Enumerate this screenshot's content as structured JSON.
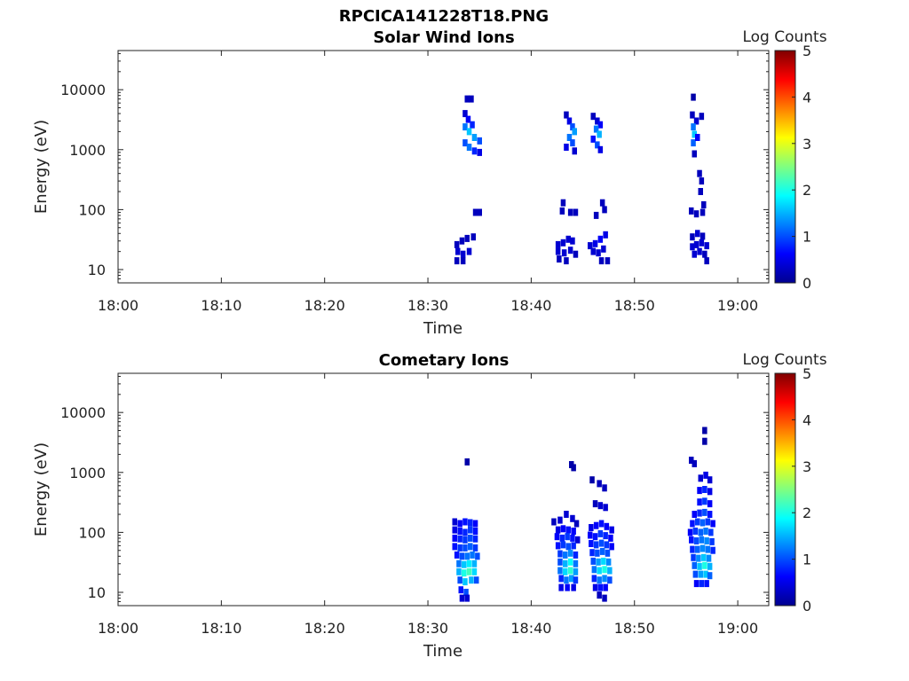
{
  "figure_title": "RPCICA141228T18.PNG",
  "chart_data": [
    {
      "type": "heatmap",
      "title": "Solar Wind Ions",
      "xlabel": "Time",
      "ylabel": "Energy (eV)",
      "x_ticks": [
        "18:00",
        "18:10",
        "18:20",
        "18:30",
        "18:40",
        "18:50",
        "19:00"
      ],
      "x_range_minutes": [
        0,
        63
      ],
      "y_scale": "log",
      "y_ticks": [
        "10",
        "100",
        "1000",
        "10000"
      ],
      "y_range": [
        6,
        45000
      ],
      "colorbar": {
        "label": "Log Counts",
        "ticks": [
          "0",
          "1",
          "2",
          "3",
          "4",
          "5"
        ],
        "range": [
          0,
          5
        ],
        "colormap": "jet"
      },
      "cells": [
        [
          33.8,
          7000,
          0.3
        ],
        [
          34.2,
          7000,
          0.3
        ],
        [
          33.6,
          4000,
          0.4
        ],
        [
          33.9,
          3200,
          0.6
        ],
        [
          34.3,
          2600,
          0.8
        ],
        [
          33.6,
          2400,
          1.2
        ],
        [
          34.0,
          2000,
          1.6
        ],
        [
          34.5,
          1600,
          1.4
        ],
        [
          35.0,
          1400,
          1.0
        ],
        [
          33.6,
          1300,
          1.0
        ],
        [
          34.0,
          1100,
          1.2
        ],
        [
          34.5,
          950,
          0.8
        ],
        [
          35.0,
          900,
          0.5
        ],
        [
          34.6,
          90,
          0.3
        ],
        [
          35.0,
          90,
          0.3
        ],
        [
          32.8,
          26,
          0.3
        ],
        [
          33.3,
          30,
          0.3
        ],
        [
          33.8,
          33,
          0.3
        ],
        [
          34.4,
          35,
          0.3
        ],
        [
          32.9,
          20,
          0.4
        ],
        [
          33.4,
          18,
          0.4
        ],
        [
          34.0,
          20,
          0.4
        ],
        [
          32.8,
          14,
          0.3
        ],
        [
          33.4,
          14,
          0.3
        ],
        [
          43.4,
          3800,
          0.3
        ],
        [
          43.7,
          3000,
          0.5
        ],
        [
          44.0,
          2400,
          1.0
        ],
        [
          44.2,
          2000,
          1.4
        ],
        [
          43.7,
          1600,
          1.2
        ],
        [
          44.0,
          1300,
          1.0
        ],
        [
          43.4,
          1100,
          0.5
        ],
        [
          44.2,
          950,
          0.4
        ],
        [
          46.0,
          3600,
          0.3
        ],
        [
          46.4,
          3000,
          0.4
        ],
        [
          46.7,
          2600,
          0.6
        ],
        [
          46.3,
          2200,
          1.2
        ],
        [
          46.6,
          1800,
          1.5
        ],
        [
          46.0,
          1500,
          0.7
        ],
        [
          46.4,
          1200,
          1.0
        ],
        [
          46.7,
          1000,
          0.5
        ],
        [
          43.1,
          130,
          0.3
        ],
        [
          43.0,
          95,
          0.3
        ],
        [
          43.8,
          90,
          0.3
        ],
        [
          44.3,
          90,
          0.3
        ],
        [
          46.3,
          80,
          0.3
        ],
        [
          46.9,
          130,
          0.3
        ],
        [
          47.1,
          100,
          0.3
        ],
        [
          42.6,
          26,
          0.4
        ],
        [
          43.1,
          28,
          0.4
        ],
        [
          43.6,
          32,
          0.4
        ],
        [
          44.0,
          30,
          0.4
        ],
        [
          42.6,
          20,
          0.4
        ],
        [
          43.2,
          19,
          0.4
        ],
        [
          43.8,
          21,
          0.4
        ],
        [
          44.3,
          18,
          0.3
        ],
        [
          42.7,
          15,
          0.3
        ],
        [
          43.4,
          14,
          0.3
        ],
        [
          45.7,
          25,
          0.4
        ],
        [
          46.2,
          27,
          0.5
        ],
        [
          46.7,
          32,
          0.6
        ],
        [
          47.2,
          38,
          0.5
        ],
        [
          46.0,
          20,
          0.4
        ],
        [
          46.5,
          19,
          0.4
        ],
        [
          47.0,
          22,
          0.4
        ],
        [
          46.8,
          14,
          0.3
        ],
        [
          47.4,
          14,
          0.3
        ],
        [
          55.7,
          7500,
          0.2
        ],
        [
          55.6,
          3800,
          0.3
        ],
        [
          56.0,
          3000,
          0.4
        ],
        [
          56.5,
          3600,
          0.3
        ],
        [
          55.7,
          2400,
          1.2
        ],
        [
          55.8,
          1800,
          1.6
        ],
        [
          55.7,
          1300,
          1.1
        ],
        [
          56.1,
          1600,
          0.6
        ],
        [
          55.8,
          850,
          0.3
        ],
        [
          56.3,
          400,
          0.3
        ],
        [
          56.5,
          300,
          0.3
        ],
        [
          56.4,
          200,
          0.3
        ],
        [
          56.7,
          120,
          0.3
        ],
        [
          55.5,
          95,
          0.3
        ],
        [
          56.0,
          85,
          0.3
        ],
        [
          56.6,
          90,
          0.3
        ],
        [
          55.6,
          35,
          0.3
        ],
        [
          56.1,
          40,
          0.4
        ],
        [
          56.6,
          36,
          0.3
        ],
        [
          55.6,
          24,
          0.4
        ],
        [
          56.0,
          26,
          0.4
        ],
        [
          56.5,
          28,
          0.4
        ],
        [
          57.0,
          25,
          0.4
        ],
        [
          55.8,
          18,
          0.4
        ],
        [
          56.3,
          20,
          0.4
        ],
        [
          56.8,
          18,
          0.3
        ],
        [
          57.0,
          14,
          0.3
        ]
      ]
    },
    {
      "type": "heatmap",
      "title": "Cometary Ions",
      "xlabel": "Time",
      "ylabel": "Energy (eV)",
      "x_ticks": [
        "18:00",
        "18:10",
        "18:20",
        "18:30",
        "18:40",
        "18:50",
        "19:00"
      ],
      "x_range_minutes": [
        0,
        63
      ],
      "y_scale": "log",
      "y_ticks": [
        "10",
        "100",
        "1000",
        "10000"
      ],
      "y_range": [
        6,
        45000
      ],
      "colorbar": {
        "label": "Log Counts",
        "ticks": [
          "0",
          "1",
          "2",
          "3",
          "4",
          "5"
        ],
        "range": [
          0,
          5
        ],
        "colormap": "jet"
      },
      "cells": [
        [
          33.8,
          1500,
          0.2
        ],
        [
          32.6,
          150,
          0.4
        ],
        [
          33.1,
          140,
          0.6
        ],
        [
          33.6,
          150,
          0.7
        ],
        [
          34.1,
          145,
          0.8
        ],
        [
          34.6,
          140,
          0.6
        ],
        [
          32.6,
          110,
          0.5
        ],
        [
          33.1,
          105,
          0.7
        ],
        [
          33.6,
          100,
          0.8
        ],
        [
          34.1,
          110,
          0.9
        ],
        [
          34.6,
          105,
          0.7
        ],
        [
          32.6,
          80,
          0.6
        ],
        [
          33.1,
          78,
          0.8
        ],
        [
          33.6,
          75,
          0.9
        ],
        [
          34.1,
          80,
          1.0
        ],
        [
          34.6,
          78,
          0.8
        ],
        [
          32.6,
          58,
          0.7
        ],
        [
          33.1,
          55,
          0.9
        ],
        [
          33.6,
          55,
          1.0
        ],
        [
          34.1,
          58,
          1.1
        ],
        [
          34.6,
          55,
          0.9
        ],
        [
          32.8,
          42,
          0.7
        ],
        [
          33.3,
          40,
          1.0
        ],
        [
          33.8,
          40,
          1.2
        ],
        [
          34.3,
          42,
          1.2
        ],
        [
          34.8,
          40,
          1.0
        ],
        [
          33.0,
          30,
          1.2
        ],
        [
          33.5,
          29,
          1.6
        ],
        [
          34.0,
          30,
          1.8
        ],
        [
          34.5,
          30,
          1.5
        ],
        [
          33.0,
          22,
          1.5
        ],
        [
          33.5,
          21,
          2.0
        ],
        [
          34.0,
          22,
          2.2
        ],
        [
          34.5,
          22,
          1.7
        ],
        [
          33.1,
          16,
          1.0
        ],
        [
          33.6,
          15,
          1.6
        ],
        [
          34.2,
          16,
          1.5
        ],
        [
          34.7,
          16,
          1.0
        ],
        [
          33.2,
          11,
          0.7
        ],
        [
          33.7,
          10,
          1.0
        ],
        [
          33.3,
          8,
          0.4
        ],
        [
          33.8,
          8,
          0.4
        ],
        [
          43.9,
          1350,
          0.2
        ],
        [
          44.1,
          1200,
          0.2
        ],
        [
          42.2,
          150,
          0.3
        ],
        [
          42.8,
          160,
          0.4
        ],
        [
          43.4,
          200,
          0.4
        ],
        [
          44.0,
          170,
          0.4
        ],
        [
          44.4,
          140,
          0.3
        ],
        [
          42.6,
          110,
          0.5
        ],
        [
          43.1,
          115,
          0.6
        ],
        [
          43.6,
          110,
          0.7
        ],
        [
          44.1,
          105,
          0.6
        ],
        [
          42.5,
          85,
          0.6
        ],
        [
          43.0,
          80,
          0.8
        ],
        [
          43.5,
          85,
          0.9
        ],
        [
          44.0,
          80,
          0.7
        ],
        [
          44.5,
          75,
          0.4
        ],
        [
          42.6,
          60,
          0.7
        ],
        [
          43.1,
          62,
          0.9
        ],
        [
          43.6,
          58,
          1.0
        ],
        [
          44.1,
          60,
          0.8
        ],
        [
          42.8,
          44,
          0.9
        ],
        [
          43.3,
          42,
          1.2
        ],
        [
          43.8,
          45,
          1.3
        ],
        [
          44.3,
          42,
          0.8
        ],
        [
          42.8,
          32,
          1.0
        ],
        [
          43.3,
          30,
          1.5
        ],
        [
          43.8,
          32,
          1.9
        ],
        [
          44.3,
          30,
          1.2
        ],
        [
          42.8,
          23,
          1.2
        ],
        [
          43.3,
          22,
          1.7
        ],
        [
          43.8,
          23,
          2.1
        ],
        [
          44.3,
          22,
          1.4
        ],
        [
          42.9,
          17,
          0.8
        ],
        [
          43.4,
          16,
          1.2
        ],
        [
          43.9,
          17,
          1.4
        ],
        [
          44.3,
          16,
          0.9
        ],
        [
          42.9,
          12,
          0.5
        ],
        [
          43.5,
          12,
          0.6
        ],
        [
          44.1,
          12,
          0.5
        ],
        [
          45.9,
          750,
          0.2
        ],
        [
          46.6,
          650,
          0.3
        ],
        [
          47.1,
          550,
          0.3
        ],
        [
          46.2,
          300,
          0.3
        ],
        [
          46.7,
          280,
          0.4
        ],
        [
          47.2,
          260,
          0.4
        ],
        [
          45.8,
          120,
          0.5
        ],
        [
          46.3,
          130,
          0.6
        ],
        [
          46.8,
          140,
          0.7
        ],
        [
          47.3,
          125,
          0.6
        ],
        [
          47.8,
          110,
          0.5
        ],
        [
          45.7,
          90,
          0.6
        ],
        [
          46.2,
          85,
          0.7
        ],
        [
          46.7,
          95,
          0.9
        ],
        [
          47.2,
          88,
          0.8
        ],
        [
          47.7,
          80,
          0.6
        ],
        [
          45.8,
          65,
          0.7
        ],
        [
          46.3,
          62,
          0.9
        ],
        [
          46.8,
          66,
          1.0
        ],
        [
          47.3,
          62,
          0.9
        ],
        [
          47.8,
          58,
          0.6
        ],
        [
          45.9,
          46,
          0.8
        ],
        [
          46.4,
          45,
          1.0
        ],
        [
          46.9,
          48,
          1.1
        ],
        [
          47.4,
          45,
          1.0
        ],
        [
          46.0,
          33,
          1.0
        ],
        [
          46.5,
          32,
          1.4
        ],
        [
          47.0,
          33,
          1.7
        ],
        [
          47.5,
          32,
          1.3
        ],
        [
          46.1,
          24,
          1.2
        ],
        [
          46.6,
          23,
          1.7
        ],
        [
          47.1,
          24,
          2.0
        ],
        [
          47.6,
          23,
          1.5
        ],
        [
          46.1,
          17,
          0.8
        ],
        [
          46.6,
          16,
          1.2
        ],
        [
          47.1,
          17,
          1.3
        ],
        [
          47.6,
          16,
          1.0
        ],
        [
          46.2,
          12,
          0.5
        ],
        [
          46.7,
          12,
          0.7
        ],
        [
          47.2,
          12,
          0.6
        ],
        [
          46.6,
          9,
          0.3
        ],
        [
          47.1,
          8,
          0.3
        ],
        [
          56.8,
          5000,
          0.2
        ],
        [
          56.8,
          3300,
          0.2
        ],
        [
          55.5,
          1600,
          0.3
        ],
        [
          55.8,
          1400,
          0.3
        ],
        [
          56.4,
          800,
          0.4
        ],
        [
          56.9,
          900,
          0.5
        ],
        [
          57.3,
          750,
          0.4
        ],
        [
          56.3,
          500,
          0.6
        ],
        [
          56.8,
          520,
          0.8
        ],
        [
          57.3,
          480,
          0.5
        ],
        [
          56.3,
          320,
          0.7
        ],
        [
          56.8,
          330,
          0.9
        ],
        [
          57.3,
          300,
          0.6
        ],
        [
          55.8,
          200,
          0.6
        ],
        [
          56.3,
          210,
          0.8
        ],
        [
          56.8,
          215,
          1.0
        ],
        [
          57.3,
          200,
          0.7
        ],
        [
          55.6,
          140,
          0.7
        ],
        [
          56.1,
          150,
          0.9
        ],
        [
          56.6,
          145,
          1.1
        ],
        [
          57.1,
          150,
          0.9
        ],
        [
          57.6,
          140,
          0.6
        ],
        [
          55.4,
          100,
          0.6
        ],
        [
          55.9,
          105,
          0.9
        ],
        [
          56.4,
          100,
          1.1
        ],
        [
          56.9,
          105,
          1.2
        ],
        [
          57.4,
          100,
          0.9
        ],
        [
          55.5,
          75,
          0.7
        ],
        [
          56.0,
          72,
          1.0
        ],
        [
          56.5,
          75,
          1.2
        ],
        [
          57.0,
          72,
          1.3
        ],
        [
          57.5,
          70,
          0.9
        ],
        [
          55.6,
          52,
          0.8
        ],
        [
          56.1,
          52,
          1.1
        ],
        [
          56.6,
          54,
          1.3
        ],
        [
          57.1,
          52,
          1.2
        ],
        [
          57.6,
          50,
          0.8
        ],
        [
          55.7,
          38,
          0.9
        ],
        [
          56.2,
          37,
          1.3
        ],
        [
          56.7,
          38,
          1.6
        ],
        [
          57.2,
          37,
          1.3
        ],
        [
          55.8,
          28,
          1.1
        ],
        [
          56.3,
          27,
          1.6
        ],
        [
          56.8,
          28,
          2.0
        ],
        [
          57.3,
          27,
          1.5
        ],
        [
          55.9,
          20,
          1.0
        ],
        [
          56.4,
          20,
          1.4
        ],
        [
          56.9,
          20,
          1.6
        ],
        [
          57.3,
          19,
          1.1
        ],
        [
          56.0,
          14,
          0.6
        ],
        [
          56.5,
          14,
          0.8
        ],
        [
          57.0,
          14,
          0.7
        ]
      ]
    }
  ]
}
